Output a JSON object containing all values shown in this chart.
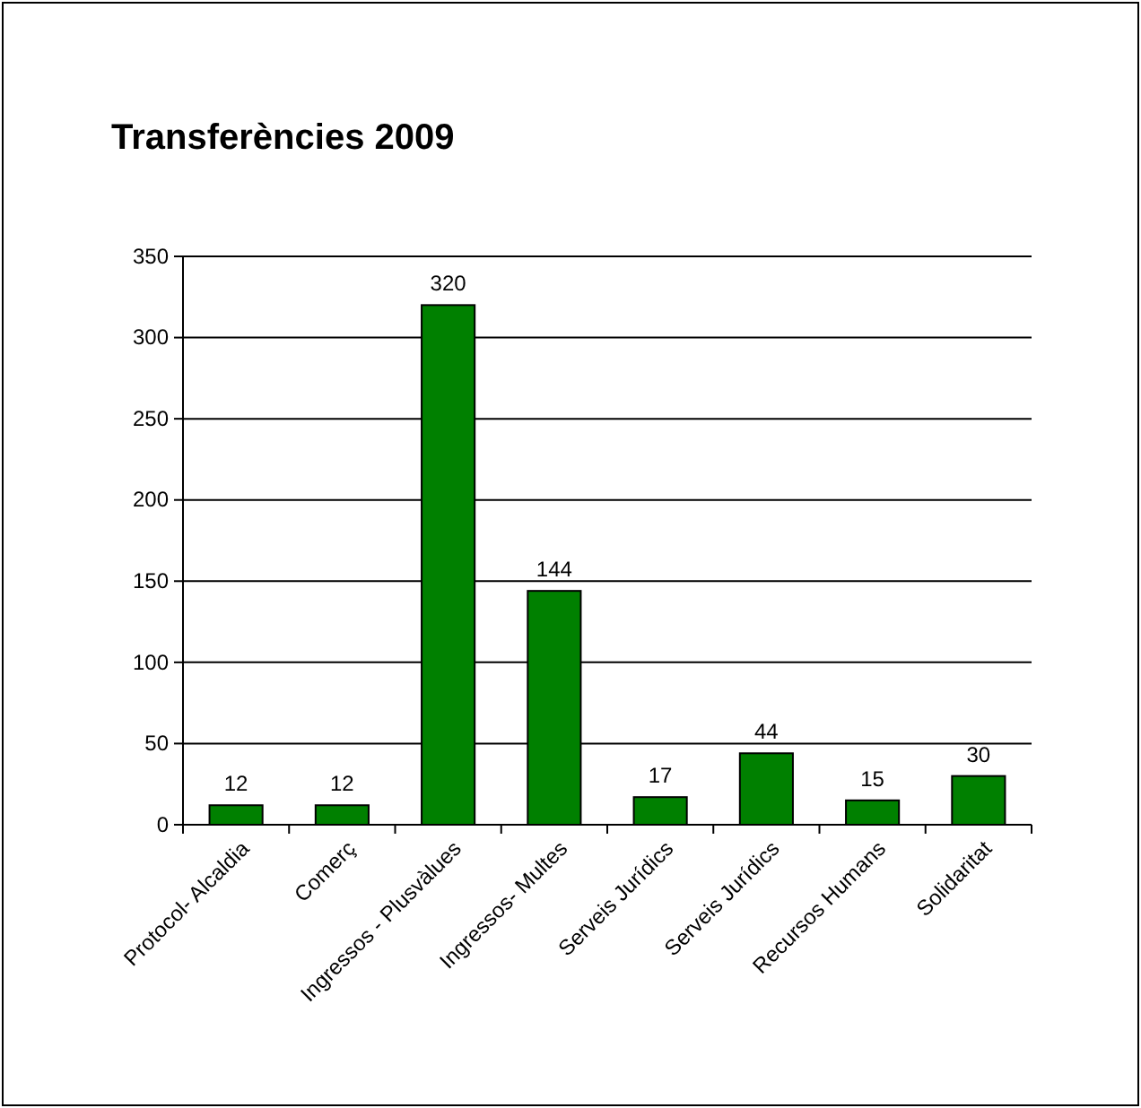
{
  "chart_data": {
    "type": "bar",
    "title": "Transferències 2009",
    "categories": [
      "Protocol- Alcaldia",
      "Comerç",
      "Ingressos - Plusvàlues",
      "Ingressos- Multes",
      "Serveis Jurídics",
      "Serveis Jurídics",
      "Recursos Humans",
      "Solidaritat"
    ],
    "values": [
      12,
      12,
      320,
      144,
      17,
      44,
      15,
      30
    ],
    "color": "#008000",
    "ylim": [
      0,
      350
    ],
    "yticks": [
      0,
      50,
      100,
      150,
      200,
      250,
      300,
      350
    ],
    "grid": "y",
    "data_labels": true
  }
}
